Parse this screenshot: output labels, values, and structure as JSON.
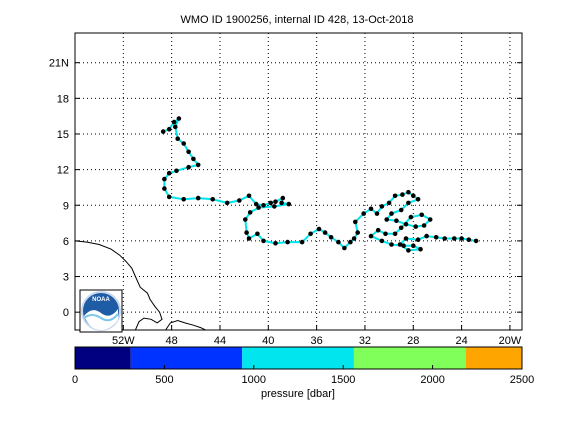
{
  "title": "WMO ID 1900256, internal ID 428, 13-Oct-2018",
  "map": {
    "lat_ticks": [
      "0",
      "3",
      "6",
      "9",
      "12",
      "15",
      "18",
      "21N"
    ],
    "lon_ticks": [
      "52W",
      "48",
      "44",
      "40",
      "36",
      "32",
      "28",
      "24",
      "20W"
    ],
    "lat_values": [
      0,
      3,
      6,
      9,
      12,
      15,
      18,
      21
    ],
    "lon_values": [
      -52,
      -48,
      -44,
      -40,
      -36,
      -32,
      -28,
      -24,
      -20
    ],
    "lon_range": [
      -56,
      -19
    ],
    "lat_range": [
      -1.5,
      23.5
    ],
    "grid": "dotted",
    "track_color": "#00e5ee",
    "point_color": "#000000",
    "logo_text": "NOAA",
    "track": [
      [
        -48.7,
        15.2
      ],
      [
        -48.2,
        15.4
      ],
      [
        -47.8,
        16.0
      ],
      [
        -47.4,
        16.3
      ],
      [
        -47.7,
        15.6
      ],
      [
        -47.5,
        14.6
      ],
      [
        -47.0,
        14.2
      ],
      [
        -46.6,
        13.5
      ],
      [
        -46.2,
        12.9
      ],
      [
        -45.8,
        12.4
      ],
      [
        -46.6,
        12.2
      ],
      [
        -47.6,
        11.9
      ],
      [
        -48.2,
        11.7
      ],
      [
        -48.6,
        11.2
      ],
      [
        -48.6,
        10.4
      ],
      [
        -48.2,
        9.7
      ],
      [
        -47.0,
        9.5
      ],
      [
        -45.8,
        9.6
      ],
      [
        -44.6,
        9.5
      ],
      [
        -43.4,
        9.2
      ],
      [
        -42.4,
        9.4
      ],
      [
        -41.6,
        9.8
      ],
      [
        -41.0,
        9.1
      ],
      [
        -40.4,
        9.0
      ],
      [
        -39.8,
        9.2
      ],
      [
        -39.4,
        9.3
      ],
      [
        -38.8,
        9.6
      ],
      [
        -38.9,
        9.2
      ],
      [
        -38.3,
        9.1
      ],
      [
        -39.5,
        8.9
      ],
      [
        -40.8,
        8.8
      ],
      [
        -41.5,
        8.4
      ],
      [
        -41.9,
        7.8
      ],
      [
        -41.8,
        6.7
      ],
      [
        -41.6,
        6.2
      ],
      [
        -40.9,
        6.6
      ],
      [
        -40.4,
        6.0
      ],
      [
        -39.4,
        5.8
      ],
      [
        -38.4,
        5.9
      ],
      [
        -37.2,
        5.9
      ],
      [
        -36.5,
        6.6
      ],
      [
        -35.8,
        7.0
      ],
      [
        -35.3,
        6.7
      ],
      [
        -34.8,
        6.3
      ],
      [
        -34.2,
        5.9
      ],
      [
        -33.7,
        5.4
      ],
      [
        -33.2,
        5.9
      ],
      [
        -32.9,
        6.2
      ],
      [
        -32.6,
        6.7
      ],
      [
        -32.8,
        7.6
      ],
      [
        -32.1,
        8.3
      ],
      [
        -31.5,
        8.7
      ],
      [
        -31.0,
        8.3
      ],
      [
        -30.6,
        8.9
      ],
      [
        -30.0,
        9.2
      ],
      [
        -29.5,
        9.8
      ],
      [
        -28.9,
        9.9
      ],
      [
        -28.4,
        10.1
      ],
      [
        -28.0,
        9.8
      ],
      [
        -27.6,
        9.5
      ],
      [
        -28.4,
        9.2
      ],
      [
        -29.0,
        8.6
      ],
      [
        -29.8,
        8.3
      ],
      [
        -30.2,
        7.8
      ],
      [
        -29.4,
        7.7
      ],
      [
        -28.6,
        7.4
      ],
      [
        -27.8,
        7.2
      ],
      [
        -27.1,
        7.3
      ],
      [
        -26.6,
        7.8
      ],
      [
        -27.3,
        8.2
      ],
      [
        -28.2,
        8.0
      ],
      [
        -29.0,
        7.1
      ],
      [
        -29.5,
        6.6
      ],
      [
        -30.3,
        6.6
      ],
      [
        -30.9,
        6.9
      ],
      [
        -31.5,
        6.4
      ],
      [
        -30.6,
        6.0
      ],
      [
        -29.8,
        5.7
      ],
      [
        -28.8,
        5.6
      ],
      [
        -28.0,
        5.6
      ],
      [
        -27.4,
        5.3
      ],
      [
        -28.4,
        5.2
      ],
      [
        -29.1,
        5.7
      ],
      [
        -28.6,
        6.2
      ],
      [
        -27.6,
        6.1
      ],
      [
        -26.9,
        6.4
      ],
      [
        -26.1,
        6.3
      ],
      [
        -25.4,
        6.2
      ],
      [
        -24.6,
        6.2
      ],
      [
        -24.0,
        6.2
      ],
      [
        -23.4,
        6.1
      ],
      [
        -22.8,
        6.0
      ]
    ],
    "coast": [
      [
        [
          -56,
          6.0
        ],
        [
          -55.0,
          5.9
        ],
        [
          -54.0,
          5.7
        ],
        [
          -53.0,
          5.3
        ],
        [
          -52.3,
          4.8
        ],
        [
          -51.8,
          4.3
        ],
        [
          -51.3,
          3.7
        ],
        [
          -51.0,
          3.0
        ],
        [
          -50.6,
          2.1
        ],
        [
          -50.0,
          1.6
        ],
        [
          -49.8,
          1.1
        ],
        [
          -49.4,
          0.5
        ],
        [
          -49.0,
          0.0
        ],
        [
          -48.8,
          -0.6
        ],
        [
          -49.2,
          -0.9
        ],
        [
          -49.7,
          -0.6
        ],
        [
          -50.3,
          -0.5
        ],
        [
          -50.7,
          -0.8
        ],
        [
          -51.0,
          -1.5
        ]
      ],
      [
        [
          -48.5,
          -1.5
        ],
        [
          -48.1,
          -0.9
        ],
        [
          -47.5,
          -0.7
        ],
        [
          -46.9,
          -0.9
        ],
        [
          -46.2,
          -1.1
        ],
        [
          -45.6,
          -1.3
        ],
        [
          -45.2,
          -1.5
        ]
      ]
    ]
  },
  "colorbar": {
    "label": "pressure [dbar]",
    "ticks": [
      "0",
      "500",
      "1000",
      "1500",
      "2000",
      "2500"
    ],
    "tick_values": [
      0,
      500,
      1000,
      1500,
      2000,
      2500
    ],
    "range": [
      0,
      2500
    ],
    "segments": [
      {
        "from": 0,
        "to": 312,
        "color": "#000080"
      },
      {
        "from": 312,
        "to": 935,
        "color": "#0033ff"
      },
      {
        "from": 935,
        "to": 1560,
        "color": "#00e5ee"
      },
      {
        "from": 1560,
        "to": 2185,
        "color": "#80ff5a"
      },
      {
        "from": 2185,
        "to": 2500,
        "color": "#ffa500"
      }
    ]
  }
}
